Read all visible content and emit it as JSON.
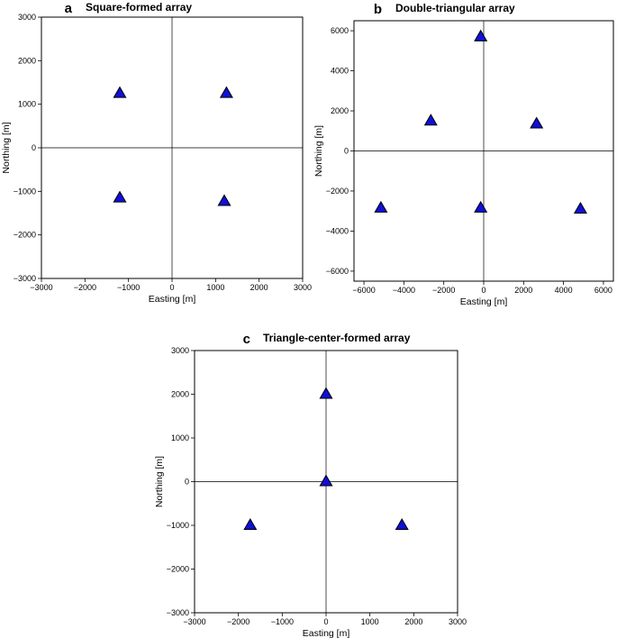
{
  "colors": {
    "station_fill": "#1010d8",
    "station_stroke": "#000000"
  },
  "chart_data": [
    {
      "type": "scatter",
      "letter": "a",
      "title": "Square-formed array",
      "xlabel": "Easting [m]",
      "ylabel": "Northing [m]",
      "xlim": [
        -3000,
        3000
      ],
      "ylim": [
        -3000,
        3000
      ],
      "xticks": [
        -3000,
        -2000,
        -1000,
        0,
        1000,
        2000,
        3000
      ],
      "yticks": [
        -3000,
        -2000,
        -1000,
        0,
        1000,
        2000,
        3000
      ],
      "xtick_labels": [
        "−3000",
        "−2000",
        "−1000",
        "0",
        "1000",
        "2000",
        "3000"
      ],
      "ytick_labels": [
        "−3000",
        "−2000",
        "−1000",
        "0",
        "1000",
        "2000",
        "3000"
      ],
      "marker": "triangle",
      "x": [
        -1200,
        1250,
        -1200,
        1200
      ],
      "y": [
        1250,
        1250,
        -1150,
        -1230
      ]
    },
    {
      "type": "scatter",
      "letter": "b",
      "title": "Double-triangular array",
      "xlabel": "Easting [m]",
      "ylabel": "Northing [m]",
      "xlim": [
        -6500,
        6500
      ],
      "ylim": [
        -6500,
        6500
      ],
      "xticks": [
        -6000,
        -4000,
        -2000,
        0,
        2000,
        4000,
        6000
      ],
      "yticks": [
        -6000,
        -4000,
        -2000,
        0,
        2000,
        4000,
        6000
      ],
      "xtick_labels": [
        "−6000",
        "−4000",
        "−2000",
        "0",
        "2000",
        "4000",
        "6000"
      ],
      "ytick_labels": [
        "−6000",
        "−4000",
        "−2000",
        "0",
        "2000",
        "4000",
        "6000"
      ],
      "marker": "triangle",
      "x": [
        -150,
        -2650,
        2650,
        -5150,
        -150,
        4850
      ],
      "y": [
        5700,
        1500,
        1350,
        -2850,
        -2850,
        -2900
      ]
    },
    {
      "type": "scatter",
      "letter": "c",
      "title": "Triangle-center-formed array",
      "xlabel": "Easting [m]",
      "ylabel": "Northing [m]",
      "xlim": [
        -3000,
        3000
      ],
      "ylim": [
        -3000,
        3000
      ],
      "xticks": [
        -3000,
        -2000,
        -1000,
        0,
        1000,
        2000,
        3000
      ],
      "yticks": [
        -3000,
        -2000,
        -1000,
        0,
        1000,
        2000,
        3000
      ],
      "xtick_labels": [
        "−3000",
        "−2000",
        "−1000",
        "0",
        "1000",
        "2000",
        "3000"
      ],
      "ytick_labels": [
        "−3000",
        "−2000",
        "−1000",
        "0",
        "1000",
        "2000",
        "3000"
      ],
      "marker": "triangle",
      "x": [
        0,
        0,
        -1730,
        1730
      ],
      "y": [
        2000,
        0,
        -1000,
        -1000
      ]
    }
  ]
}
